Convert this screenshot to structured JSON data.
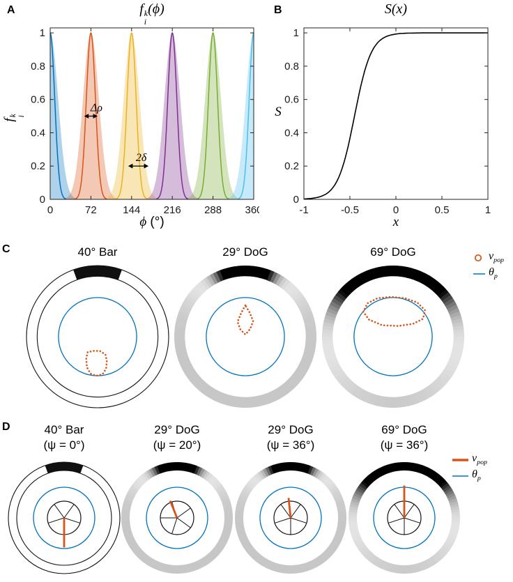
{
  "panels": {
    "a": {
      "label": "A",
      "title": {
        "base": "f",
        "sup": "k",
        "sub": "i",
        "arg": "(ϕ)"
      },
      "ylabel": {
        "base": "f",
        "sup": "k",
        "sub": "i"
      },
      "xlabel": {
        "base": "ϕ",
        "unit": " (°)"
      }
    },
    "b": {
      "label": "B",
      "title": "S(x)",
      "ylabel": "S",
      "xlabel": "x"
    },
    "c": {
      "label": "C",
      "legend": {
        "vpop_base": "v",
        "vpop_sub": "pop",
        "theta_base": "θ",
        "theta_sub": "p"
      }
    },
    "d": {
      "label": "D",
      "legend": {
        "vpop_base": "v",
        "vpop_sub": "pop",
        "theta_base": "θ",
        "theta_sub": "p"
      }
    }
  },
  "colors": {
    "matlab_blue": "#0072BD",
    "orange": "#D95319",
    "axis": "#222222"
  },
  "chart_data": [
    {
      "id": "A_tuning_curves",
      "type": "line",
      "title": "f_i^k(phi)",
      "xlabel": "phi (deg)",
      "ylabel": "f_i^k",
      "xlim": [
        0,
        360
      ],
      "ylim": [
        0,
        1.03
      ],
      "xticks": [
        0,
        72,
        144,
        216,
        288,
        360
      ],
      "yticks": [
        0,
        0.2,
        0.4,
        0.6,
        0.8,
        1
      ],
      "curve_model": "gaussian",
      "peak": 1,
      "narrow_sigma_deg": 8,
      "band_sigma_deg": 14,
      "band_alpha": 0.32,
      "series": [
        {
          "center": 0,
          "color": "#0072BD"
        },
        {
          "center": 72,
          "color": "#D95319"
        },
        {
          "center": 144,
          "color": "#EDB120"
        },
        {
          "center": 216,
          "color": "#7E2F8E"
        },
        {
          "center": 288,
          "color": "#77AC30"
        },
        {
          "center": 360,
          "color": "#4DBEEE"
        }
      ],
      "annotations": [
        {
          "text": "Δρ",
          "x1": 60,
          "x2": 84,
          "y": 0.5,
          "label_dx": 8
        },
        {
          "text": "2δ",
          "x1": 138,
          "x2": 174,
          "y": 0.2,
          "label_dx": 4
        }
      ]
    },
    {
      "id": "B_sigmoid",
      "type": "line",
      "title": "S(x)",
      "xlabel": "x",
      "ylabel": "S",
      "xlim": [
        -1,
        1
      ],
      "ylim": [
        0,
        1.03
      ],
      "xticks": [
        -1,
        -0.5,
        0,
        0.5,
        1
      ],
      "yticks": [
        0,
        0.2,
        0.4,
        0.6,
        0.8,
        1
      ],
      "curve_model": "logistic",
      "midpoint": -0.45,
      "steepness": 11,
      "color": "#000000"
    },
    {
      "id": "C_population_readout",
      "type": "ring_diagrams",
      "ring_inner_radius": 0.85,
      "blue_circle_radius": 0.55,
      "items": [
        {
          "title": "40° Bar",
          "stimulus": "bar",
          "dark_halfwidth_deg": 20,
          "contour": [
            [
              -0.14,
              -0.22
            ],
            [
              -0.16,
              -0.31
            ],
            [
              -0.15,
              -0.43
            ],
            [
              -0.1,
              -0.52
            ],
            [
              -0.02,
              -0.55
            ],
            [
              0.07,
              -0.53
            ],
            [
              0.12,
              -0.45
            ],
            [
              0.13,
              -0.34
            ],
            [
              0.11,
              -0.25
            ],
            [
              0.03,
              -0.2
            ],
            [
              -0.06,
              -0.2
            ]
          ]
        },
        {
          "title": "29° DoG",
          "stimulus": "dog",
          "dark_halfwidth_deg": 15,
          "contour": [
            [
              0.0,
              0.44
            ],
            [
              -0.06,
              0.33
            ],
            [
              -0.11,
              0.21
            ],
            [
              -0.07,
              0.1
            ],
            [
              0.0,
              0.03
            ],
            [
              0.07,
              0.11
            ],
            [
              0.11,
              0.22
            ],
            [
              0.06,
              0.34
            ]
          ]
        },
        {
          "title": "69° DoG",
          "stimulus": "dog",
          "dark_halfwidth_deg": 35,
          "contour": [
            [
              -0.42,
              0.35
            ],
            [
              -0.36,
              0.47
            ],
            [
              -0.22,
              0.54
            ],
            [
              -0.03,
              0.56
            ],
            [
              0.17,
              0.54
            ],
            [
              0.34,
              0.48
            ],
            [
              0.45,
              0.37
            ],
            [
              0.42,
              0.25
            ],
            [
              0.28,
              0.18
            ],
            [
              0.07,
              0.15
            ],
            [
              -0.15,
              0.16
            ],
            [
              -0.34,
              0.24
            ]
          ]
        }
      ]
    },
    {
      "id": "D_orientation_readout",
      "type": "ring_diagrams",
      "ring_inner_radius": 0.85,
      "blue_circle_radius": 0.55,
      "wheel_radius": 0.3,
      "items": [
        {
          "title": "40° Bar",
          "subtitle": "(ψ = 0°)",
          "psi_deg": 0,
          "stimulus": "bar",
          "dark_halfwidth_deg": 20,
          "needle_angle_deg": 180,
          "needle_len": 0.53,
          "wheel_rot_deg": 0
        },
        {
          "title": "29° DoG",
          "subtitle": "(ψ = 20°)",
          "psi_deg": 20,
          "stimulus": "dog",
          "dark_halfwidth_deg": 15,
          "needle_angle_deg": -22,
          "needle_len": 0.33,
          "wheel_rot_deg": 18
        },
        {
          "title": "29° DoG",
          "subtitle": "(ψ = 36°)",
          "psi_deg": 36,
          "stimulus": "dog",
          "dark_halfwidth_deg": 15,
          "needle_angle_deg": -6,
          "needle_len": 0.36,
          "wheel_rot_deg": 0
        },
        {
          "title": "69° DoG",
          "subtitle": "(ψ = 36°)",
          "psi_deg": 36,
          "stimulus": "dog",
          "dark_halfwidth_deg": 35,
          "needle_angle_deg": 0,
          "needle_len": 0.58,
          "wheel_rot_deg": 0
        }
      ]
    }
  ]
}
